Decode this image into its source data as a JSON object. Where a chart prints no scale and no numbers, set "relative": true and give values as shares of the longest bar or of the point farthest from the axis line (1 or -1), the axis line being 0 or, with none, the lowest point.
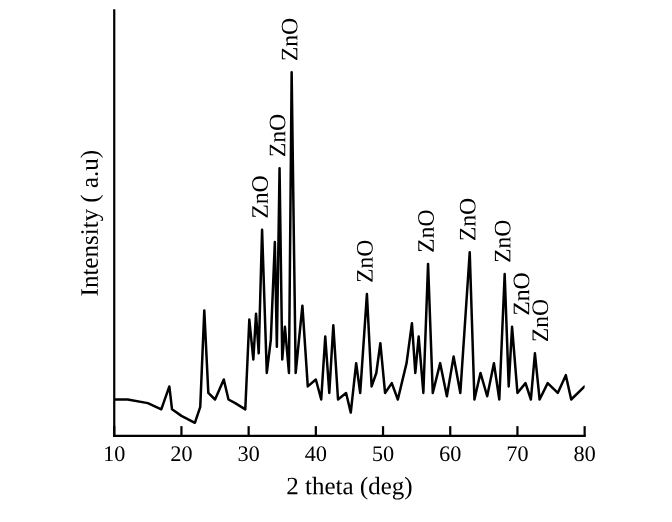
{
  "chart_data": {
    "type": "line",
    "relative": true,
    "xlabel": "2 theta (deg)",
    "ylabel": "Intensity ( a.u)",
    "xlim": [
      10,
      80
    ],
    "xticks": [
      10,
      20,
      30,
      40,
      50,
      60,
      70,
      80
    ],
    "grid": false,
    "legend": false,
    "marker": "none",
    "line_style": "solid",
    "series": [
      {
        "color": "#000000",
        "x": [
          10,
          12,
          15,
          17,
          18.2,
          18.6,
          20,
          22,
          22.8,
          23.4,
          24,
          25,
          26.3,
          27,
          28,
          29.5,
          30.1,
          30.7,
          31.1,
          31.5,
          32.0,
          32.7,
          33.3,
          33.9,
          34.2,
          34.6,
          35.0,
          35.4,
          36.0,
          36.4,
          37.0,
          38.0,
          38.8,
          40,
          40.8,
          41.4,
          42.0,
          42.6,
          43.3,
          44.5,
          45.2,
          46,
          46.6,
          47.6,
          48.3,
          49.0,
          49.6,
          50.3,
          51.3,
          52.2,
          53.5,
          54.3,
          54.8,
          55.3,
          56.0,
          56.7,
          57.4,
          58.5,
          59.5,
          60.5,
          61.5,
          62.9,
          63.6,
          64.5,
          65.5,
          66.5,
          67.3,
          68.1,
          68.7,
          69.2,
          70.0,
          71.2,
          72.0,
          72.6,
          73.3,
          74.5,
          76,
          77.2,
          78,
          80
        ],
        "values": [
          0.1,
          0.1,
          0.09,
          0.073,
          0.136,
          0.073,
          0.055,
          0.036,
          0.08,
          0.345,
          0.118,
          0.1,
          0.155,
          0.1,
          0.09,
          0.073,
          0.32,
          0.21,
          0.336,
          0.227,
          0.567,
          0.173,
          0.264,
          0.533,
          0.245,
          0.736,
          0.21,
          0.3,
          0.173,
          1.0,
          0.173,
          0.358,
          0.136,
          0.155,
          0.1,
          0.273,
          0.118,
          0.304,
          0.1,
          0.118,
          0.064,
          0.2,
          0.118,
          0.39,
          0.136,
          0.173,
          0.255,
          0.118,
          0.145,
          0.1,
          0.2,
          0.31,
          0.173,
          0.273,
          0.118,
          0.473,
          0.118,
          0.2,
          0.109,
          0.218,
          0.118,
          0.505,
          0.1,
          0.173,
          0.109,
          0.2,
          0.1,
          0.445,
          0.136,
          0.3,
          0.118,
          0.145,
          0.1,
          0.227,
          0.1,
          0.145,
          0.118,
          0.167,
          0.1,
          0.136
        ]
      }
    ],
    "annotations": [
      {
        "text": "ZnO",
        "x": 32.0,
        "y": 0.567
      },
      {
        "text": "ZnO",
        "x": 34.6,
        "y": 0.736
      },
      {
        "text": "ZnO",
        "x": 36.4,
        "y": 1.0
      },
      {
        "text": "ZnO",
        "x": 47.6,
        "y": 0.39
      },
      {
        "text": "ZnO",
        "x": 56.7,
        "y": 0.473
      },
      {
        "text": "ZnO",
        "x": 62.9,
        "y": 0.505
      },
      {
        "text": "ZnO",
        "x": 68.1,
        "y": 0.445
      },
      {
        "text": "ZnO",
        "x": 69.2,
        "y": 0.3
      },
      {
        "text": "ZnO",
        "x": 72.6,
        "y": 0.227
      }
    ]
  }
}
